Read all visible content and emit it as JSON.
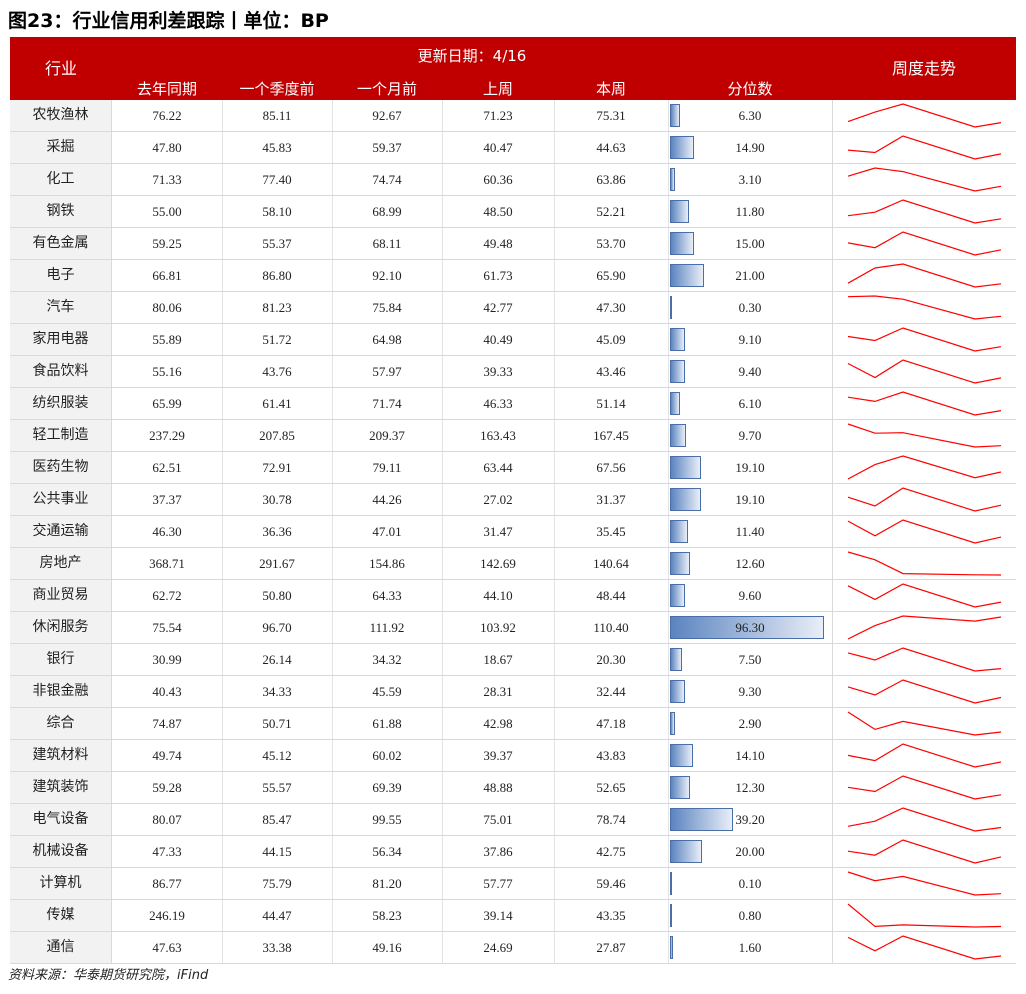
{
  "title": "图23：行业信用利差跟踪丨单位：BP",
  "header": {
    "industry": "行业",
    "update_date": "更新日期：4/16",
    "columns": [
      "去年同期",
      "一个季度前",
      "一个月前",
      "上周",
      "本周",
      "分位数"
    ],
    "trend": "周度走势"
  },
  "source": "资料来源：华泰期货研究院，iFind",
  "colors": {
    "header_bg": "#c00000",
    "trend_line": "#ff0000",
    "bar": "#5b84c0"
  },
  "chart_data": {
    "type": "table",
    "columns": [
      "行业",
      "去年同期",
      "一个季度前",
      "一个月前",
      "上周",
      "本周",
      "分位数",
      "周度走势"
    ],
    "percentile_range": [
      0,
      100
    ],
    "rows": [
      {
        "name": "农牧渔林",
        "values": [
          "76.22",
          "85.11",
          "92.67",
          "71.23",
          "75.31"
        ],
        "pct": "6.30"
      },
      {
        "name": "采掘",
        "values": [
          "47.80",
          "45.83",
          "59.37",
          "40.47",
          "44.63"
        ],
        "pct": "14.90"
      },
      {
        "name": "化工",
        "values": [
          "71.33",
          "77.40",
          "74.74",
          "60.36",
          "63.86"
        ],
        "pct": "3.10"
      },
      {
        "name": "钢铁",
        "values": [
          "55.00",
          "58.10",
          "68.99",
          "48.50",
          "52.21"
        ],
        "pct": "11.80"
      },
      {
        "name": "有色金属",
        "values": [
          "59.25",
          "55.37",
          "68.11",
          "49.48",
          "53.70"
        ],
        "pct": "15.00"
      },
      {
        "name": "电子",
        "values": [
          "66.81",
          "86.80",
          "92.10",
          "61.73",
          "65.90"
        ],
        "pct": "21.00"
      },
      {
        "name": "汽车",
        "values": [
          "80.06",
          "81.23",
          "75.84",
          "42.77",
          "47.30"
        ],
        "pct": "0.30"
      },
      {
        "name": "家用电器",
        "values": [
          "55.89",
          "51.72",
          "64.98",
          "40.49",
          "45.09"
        ],
        "pct": "9.10"
      },
      {
        "name": "食品饮料",
        "values": [
          "55.16",
          "43.76",
          "57.97",
          "39.33",
          "43.46"
        ],
        "pct": "9.40"
      },
      {
        "name": "纺织服装",
        "values": [
          "65.99",
          "61.41",
          "71.74",
          "46.33",
          "51.14"
        ],
        "pct": "6.10"
      },
      {
        "name": "轻工制造",
        "values": [
          "237.29",
          "207.85",
          "209.37",
          "163.43",
          "167.45"
        ],
        "pct": "9.70"
      },
      {
        "name": "医药生物",
        "values": [
          "62.51",
          "72.91",
          "79.11",
          "63.44",
          "67.56"
        ],
        "pct": "19.10"
      },
      {
        "name": "公共事业",
        "values": [
          "37.37",
          "30.78",
          "44.26",
          "27.02",
          "31.37"
        ],
        "pct": "19.10"
      },
      {
        "name": "交通运输",
        "values": [
          "46.30",
          "36.36",
          "47.01",
          "31.47",
          "35.45"
        ],
        "pct": "11.40"
      },
      {
        "name": "房地产",
        "values": [
          "368.71",
          "291.67",
          "154.86",
          "142.69",
          "140.64"
        ],
        "pct": "12.60"
      },
      {
        "name": "商业贸易",
        "values": [
          "62.72",
          "50.80",
          "64.33",
          "44.10",
          "48.44"
        ],
        "pct": "9.60"
      },
      {
        "name": "休闲服务",
        "values": [
          "75.54",
          "96.70",
          "111.92",
          "103.92",
          "110.40"
        ],
        "pct": "96.30"
      },
      {
        "name": "银行",
        "values": [
          "30.99",
          "26.14",
          "34.32",
          "18.67",
          "20.30"
        ],
        "pct": "7.50"
      },
      {
        "name": "非银金融",
        "values": [
          "40.43",
          "34.33",
          "45.59",
          "28.31",
          "32.44"
        ],
        "pct": "9.30"
      },
      {
        "name": "综合",
        "values": [
          "74.87",
          "50.71",
          "61.88",
          "42.98",
          "47.18"
        ],
        "pct": "2.90"
      },
      {
        "name": "建筑材料",
        "values": [
          "49.74",
          "45.12",
          "60.02",
          "39.37",
          "43.83"
        ],
        "pct": "14.10"
      },
      {
        "name": "建筑装饰",
        "values": [
          "59.28",
          "55.57",
          "69.39",
          "48.88",
          "52.65"
        ],
        "pct": "12.30"
      },
      {
        "name": "电气设备",
        "values": [
          "80.07",
          "85.47",
          "99.55",
          "75.01",
          "78.74"
        ],
        "pct": "39.20"
      },
      {
        "name": "机械设备",
        "values": [
          "47.33",
          "44.15",
          "56.34",
          "37.86",
          "42.75"
        ],
        "pct": "20.00"
      },
      {
        "name": "计算机",
        "values": [
          "86.77",
          "75.79",
          "81.20",
          "57.77",
          "59.46"
        ],
        "pct": "0.10"
      },
      {
        "name": "传媒",
        "values": [
          "246.19",
          "44.47",
          "58.23",
          "39.14",
          "43.35"
        ],
        "pct": "0.80"
      },
      {
        "name": "通信",
        "values": [
          "47.63",
          "33.38",
          "49.16",
          "24.69",
          "27.87"
        ],
        "pct": "1.60"
      }
    ]
  }
}
